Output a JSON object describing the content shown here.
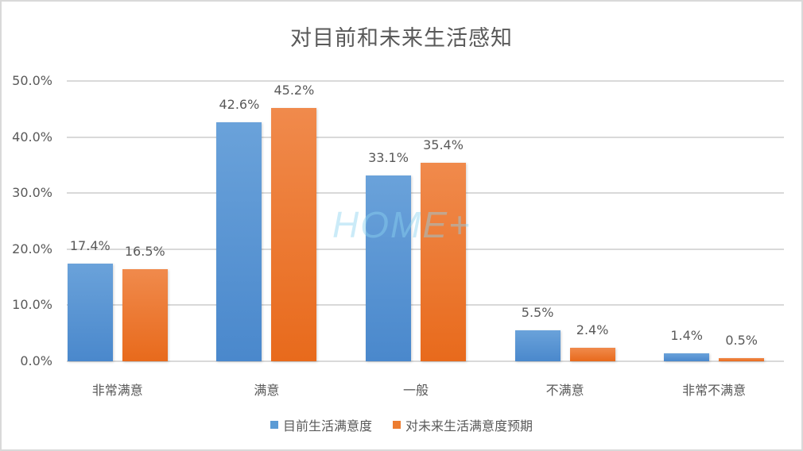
{
  "chart_data": {
    "type": "bar",
    "title": "对目前和未来生活感知",
    "categories": [
      "非常满意",
      "满意",
      "一般",
      "不满意",
      "非常不满意"
    ],
    "series": [
      {
        "name": "目前生活满意度",
        "color": "#5b9bd5",
        "values": [
          17.4,
          42.6,
          33.1,
          5.5,
          1.4
        ],
        "labels": [
          "17.4%",
          "42.6%",
          "33.1%",
          "5.5%",
          "1.4%"
        ]
      },
      {
        "name": "对未来生活满意度预期",
        "color": "#ed7d31",
        "values": [
          16.5,
          45.2,
          35.4,
          2.4,
          0.5
        ],
        "labels": [
          "16.5%",
          "45.2%",
          "35.4%",
          "2.4%",
          "0.5%"
        ]
      }
    ],
    "xlabel": "",
    "ylabel": "",
    "ylim": [
      0,
      50
    ],
    "yticks": [
      "0.0%",
      "10.0%",
      "20.0%",
      "30.0%",
      "40.0%",
      "50.0%"
    ],
    "grid": true,
    "legend_position": "bottom",
    "watermark": "HOME+"
  }
}
